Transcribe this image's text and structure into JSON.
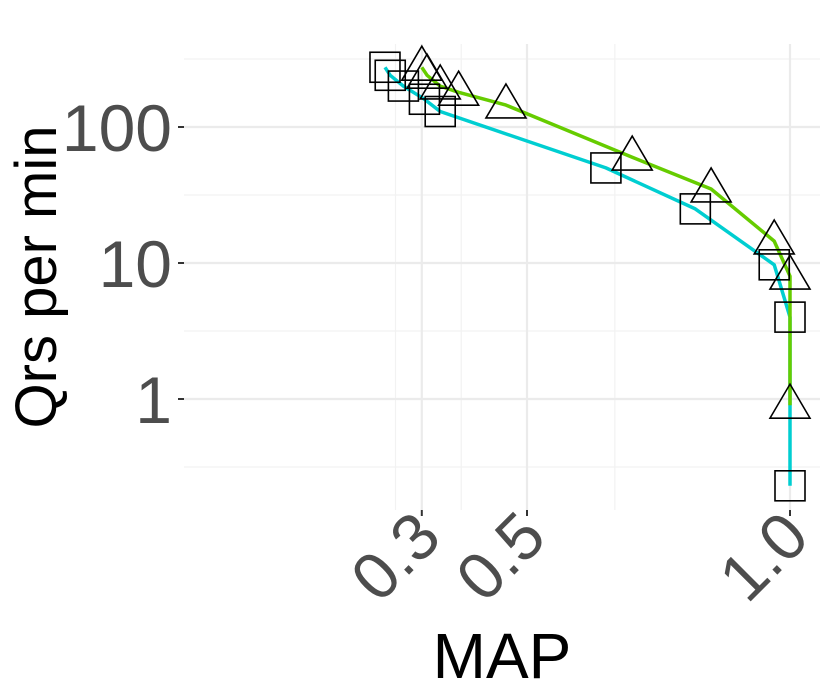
{
  "chart_data": {
    "type": "line",
    "title": "",
    "xlabel": "MAP",
    "ylabel": "Qrs per min",
    "x_scale": "reciprocal",
    "y_scale": "log10",
    "xlim": [
      0.223,
      1.08
    ],
    "ylim": [
      0.1,
      480
    ],
    "x_ticks": [
      0.3,
      0.5,
      1.0
    ],
    "x_tick_labels": [
      "0.3",
      "0.5",
      "1.0"
    ],
    "y_ticks": [
      1,
      10,
      100
    ],
    "y_tick_labels": [
      "1",
      "10",
      "100"
    ],
    "grid": true,
    "legend": "none",
    "series": [
      {
        "marker": "square",
        "color": "#00CED1",
        "points": [
          {
            "x": 0.23,
            "y": 275
          },
          {
            "x": 0.24,
            "y": 240
          },
          {
            "x": 0.265,
            "y": 200
          },
          {
            "x": 0.305,
            "y": 160
          },
          {
            "x": 0.335,
            "y": 130
          },
          {
            "x": 0.65,
            "y": 50
          },
          {
            "x": 0.82,
            "y": 25
          },
          {
            "x": 0.97,
            "y": 9.7
          },
          {
            "x": 1.0,
            "y": 4
          },
          {
            "x": 1.0,
            "y": 0.23
          }
        ]
      },
      {
        "marker": "triangle",
        "color": "#66CC00",
        "points": [
          {
            "x": 0.3,
            "y": 275
          },
          {
            "x": 0.31,
            "y": 240
          },
          {
            "x": 0.335,
            "y": 200
          },
          {
            "x": 0.37,
            "y": 180
          },
          {
            "x": 0.46,
            "y": 145
          },
          {
            "x": 0.7,
            "y": 60
          },
          {
            "x": 0.85,
            "y": 35
          },
          {
            "x": 0.97,
            "y": 14.5
          },
          {
            "x": 1.0,
            "y": 8
          },
          {
            "x": 1.0,
            "y": 0.9
          }
        ]
      }
    ]
  }
}
